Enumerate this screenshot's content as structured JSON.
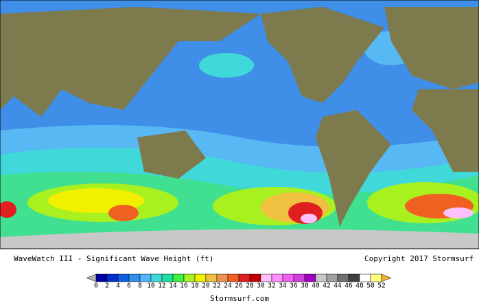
{
  "map": {
    "caption": "WaveWatch III - Significant Wave Height (ft)",
    "copyright": "Copyright 2017 Stormsurf",
    "footer": "Stormsurf.com"
  },
  "legend": {
    "ticks": [
      0,
      2,
      4,
      6,
      8,
      10,
      12,
      14,
      16,
      18,
      20,
      22,
      24,
      26,
      28,
      30,
      32,
      34,
      36,
      38,
      40,
      42,
      44,
      46,
      48,
      50,
      52
    ],
    "colors": [
      "#0000a0",
      "#0030d0",
      "#1060e0",
      "#3090f0",
      "#50b8f8",
      "#40d8d8",
      "#20e0a0",
      "#40f040",
      "#a8f020",
      "#f0f000",
      "#f0c040",
      "#f09050",
      "#f06020",
      "#e02020",
      "#c00000",
      "#ffc0ff",
      "#ff90ff",
      "#f060f0",
      "#d040e0",
      "#a000c0",
      "#c8c8c8",
      "#a0a0a0",
      "#707070",
      "#404040",
      "#ffffff",
      "#ffff80"
    ],
    "under_color": "#b0b0b0",
    "over_color": "#f0b030"
  }
}
